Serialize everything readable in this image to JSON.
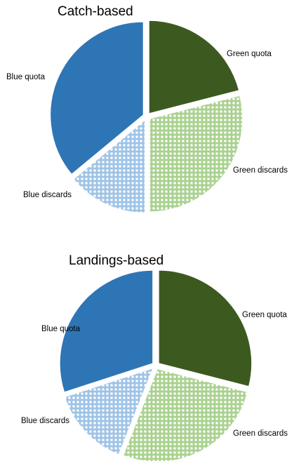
{
  "chart_data": [
    {
      "type": "pie",
      "title": "Catch-based",
      "slices": [
        {
          "label": "Green quota",
          "value": 21,
          "color": "#3c5a20",
          "pattern": "solid"
        },
        {
          "label": "Green discards",
          "value": 29,
          "color": "#a9d18e",
          "pattern": "grid"
        },
        {
          "label": "Blue discards",
          "value": 14,
          "color": "#9dc3e6",
          "pattern": "grid"
        },
        {
          "label": "Blue quota",
          "value": 36,
          "color": "#2e75b6",
          "pattern": "solid"
        }
      ]
    },
    {
      "type": "pie",
      "title": "Landings-based",
      "slices": [
        {
          "label": "Green quota",
          "value": 29,
          "color": "#3c5a20",
          "pattern": "solid"
        },
        {
          "label": "Green discards",
          "value": 27,
          "color": "#a9d18e",
          "pattern": "grid"
        },
        {
          "label": "Blue discards",
          "value": 14,
          "color": "#9dc3e6",
          "pattern": "grid"
        },
        {
          "label": "Blue quota",
          "value": 30,
          "color": "#2e75b6",
          "pattern": "solid"
        }
      ]
    }
  ]
}
